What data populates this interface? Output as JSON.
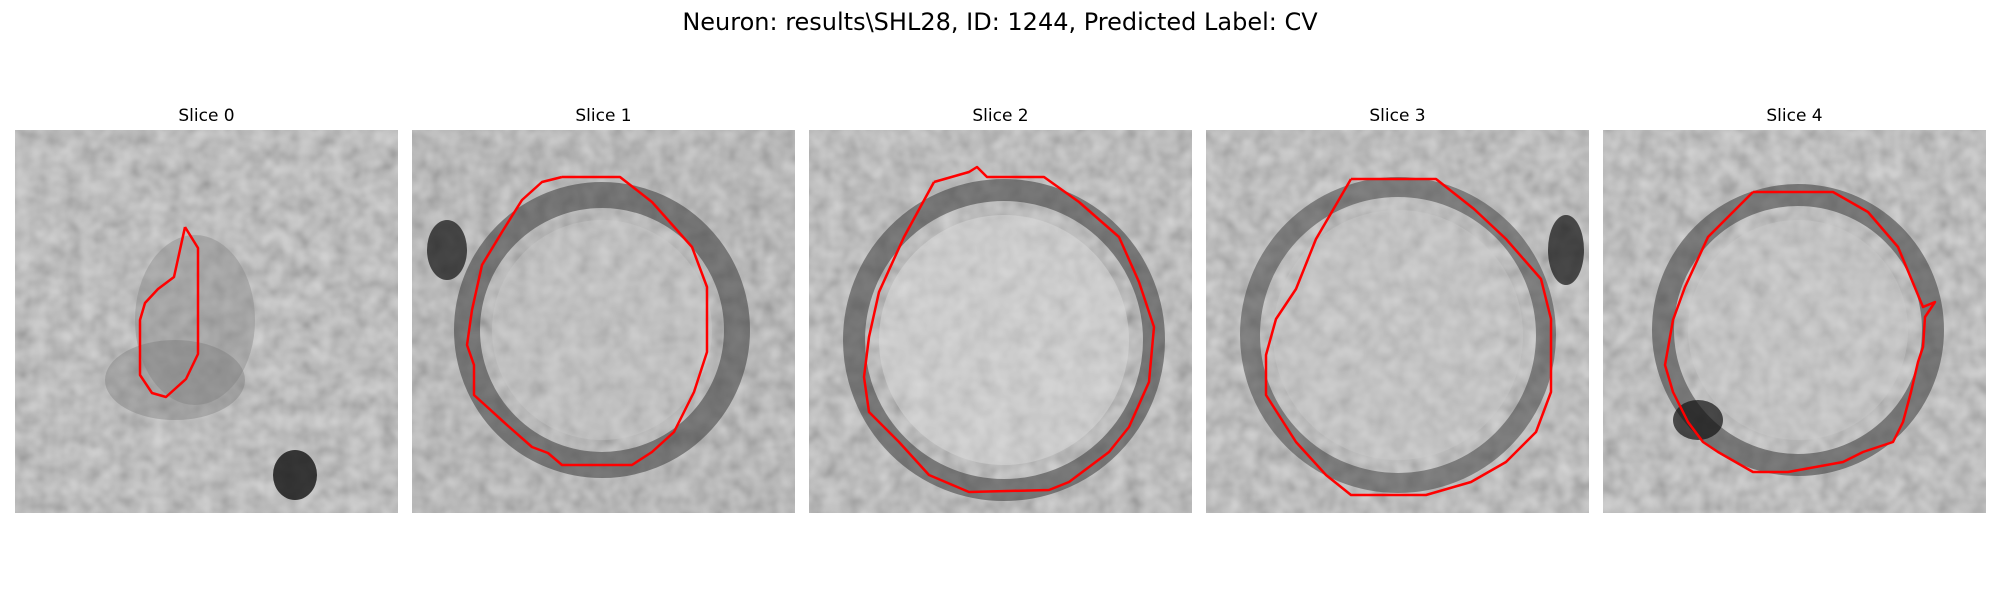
{
  "figure": {
    "title": "Neuron: results\\SHL28, ID: 1244, Predicted Label: CV"
  },
  "panels": [
    {
      "title": "Slice 0"
    },
    {
      "title": "Slice 1"
    },
    {
      "title": "Slice 2"
    },
    {
      "title": "Slice 3"
    },
    {
      "title": "Slice 4"
    }
  ],
  "colors": {
    "contour": "#ff0000",
    "background": "#ffffff"
  }
}
